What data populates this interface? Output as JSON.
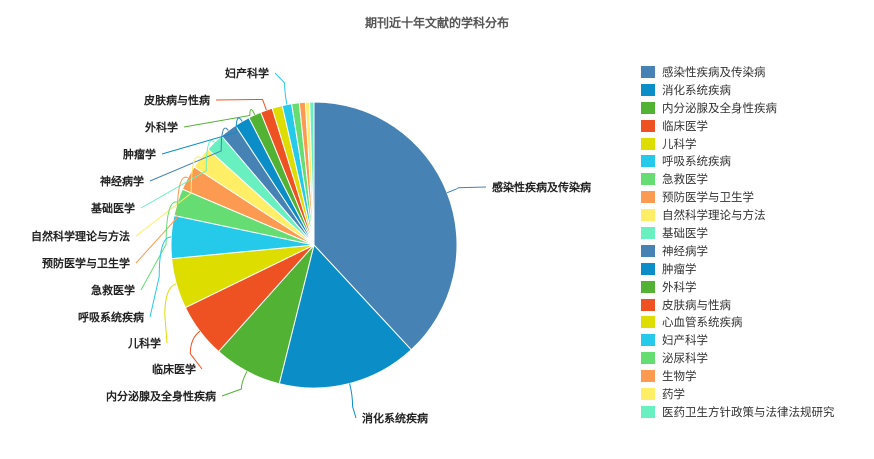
{
  "title": "期刊近十年文献的学科分布",
  "chart_data": {
    "type": "pie",
    "title": "期刊近十年文献的学科分布",
    "legend_position": "right",
    "slices": [
      {
        "name": "感染性疾病及传染病",
        "value": 39.5,
        "color": "#4682b4",
        "label": true
      },
      {
        "name": "消化系统疾病",
        "value": 16.4,
        "color": "#0b8ec8",
        "label": true
      },
      {
        "name": "内分泌腺及全身性疾病",
        "value": 8.0,
        "color": "#52b233",
        "label": true
      },
      {
        "name": "临床医学",
        "value": 6.4,
        "color": "#ef5222",
        "label": true
      },
      {
        "name": "儿科学",
        "value": 5.9,
        "color": "#dddd00",
        "label": true
      },
      {
        "name": "呼吸系统疾病",
        "value": 5.0,
        "color": "#25c9ea",
        "label": true
      },
      {
        "name": "急救医学",
        "value": 3.2,
        "color": "#66dd73",
        "label": true
      },
      {
        "name": "预防医学与卫生学",
        "value": 2.9,
        "color": "#fb9a50",
        "label": true
      },
      {
        "name": "自然科学理论与方法",
        "value": 2.6,
        "color": "#ffee66",
        "label": true
      },
      {
        "name": "基础医学",
        "value": 2.2,
        "color": "#68f0c0",
        "label": true
      },
      {
        "name": "神经病学",
        "value": 2.0,
        "color": "#4682b4",
        "label": true
      },
      {
        "name": "肿瘤学",
        "value": 1.8,
        "color": "#0b8ec8",
        "label": true
      },
      {
        "name": "外科学",
        "value": 1.5,
        "color": "#52b233",
        "label": true
      },
      {
        "name": "皮肤病与性病",
        "value": 1.4,
        "color": "#ef5222",
        "label": true
      },
      {
        "name": "心血管系统疾病",
        "value": 1.2,
        "color": "#dddd00",
        "label": false
      },
      {
        "name": "妇产科学",
        "value": 1.1,
        "color": "#25c9ea",
        "label": true
      },
      {
        "name": "泌尿科学",
        "value": 0.9,
        "color": "#66dd73",
        "label": false
      },
      {
        "name": "生物学",
        "value": 0.7,
        "color": "#fb9a50",
        "label": false
      },
      {
        "name": "药学",
        "value": 0.5,
        "color": "#ffee66",
        "label": false
      },
      {
        "name": "医药卫生方针政策与法律法规研究",
        "value": 0.5,
        "color": "#68f0c0",
        "label": false
      }
    ]
  }
}
